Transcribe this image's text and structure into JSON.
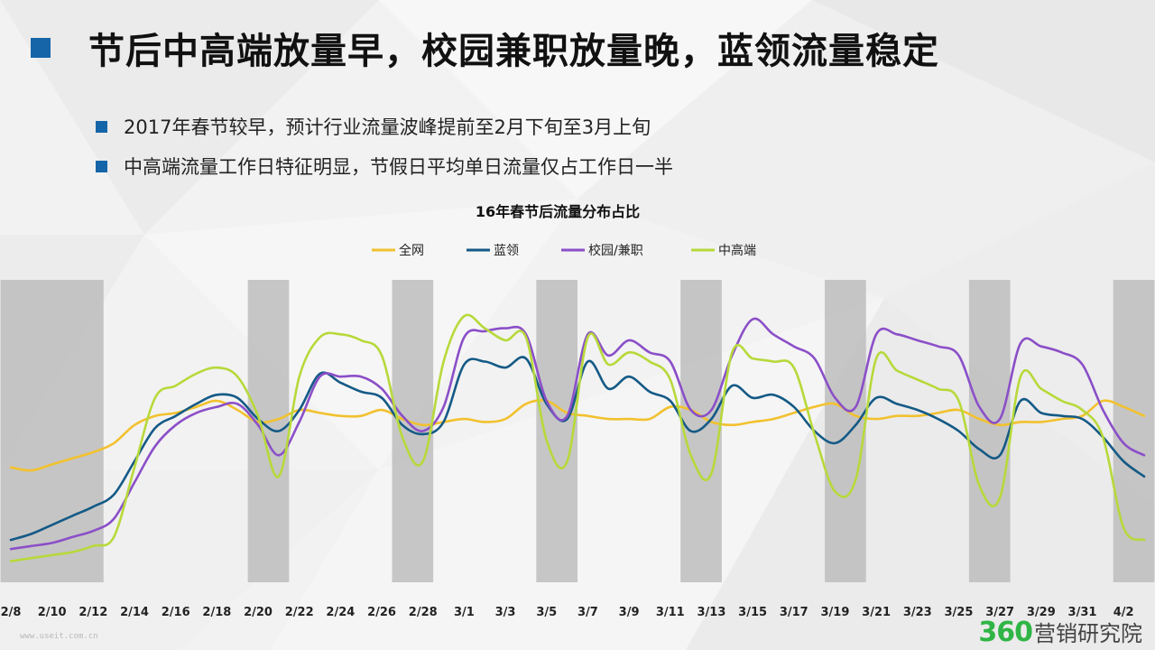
{
  "title": "节后中高端放量早，校园兼职放量晚，蓝领流量稳定",
  "bullets": [
    "2017年春节较早，预计行业流量波峰提前至2月下旬至3月上旬",
    "中高端流量工作日特征明显，节假日平均单日流量仅占工作日一半"
  ],
  "watermark": "www.useit.com.cn",
  "logo": {
    "number": "360",
    "text": "营销研究院"
  },
  "colors": {
    "accent": "#1565a8",
    "weekend_band": "#bdbdbd",
    "logo_green": "#2fb545"
  },
  "chart_data": {
    "type": "line",
    "title": "16年春节后流量分布占比",
    "legend_position": "top-center",
    "grid": false,
    "y_axis_visible": false,
    "ylim": [
      0,
      100
    ],
    "categories": [
      "2/8",
      "2/9",
      "2/10",
      "2/11",
      "2/12",
      "2/13",
      "2/14",
      "2/15",
      "2/16",
      "2/17",
      "2/18",
      "2/19",
      "2/20",
      "2/21",
      "2/22",
      "2/23",
      "2/24",
      "2/25",
      "2/26",
      "2/27",
      "2/28",
      "2/29",
      "3/1",
      "3/2",
      "3/3",
      "3/4",
      "3/5",
      "3/6",
      "3/7",
      "3/8",
      "3/9",
      "3/10",
      "3/11",
      "3/12",
      "3/13",
      "3/14",
      "3/15",
      "3/16",
      "3/17",
      "3/18",
      "3/19",
      "3/20",
      "3/21",
      "3/22",
      "3/23",
      "3/24",
      "3/25",
      "3/26",
      "3/27",
      "3/28",
      "3/29",
      "3/30",
      "3/31",
      "4/1",
      "4/2",
      "4/3"
    ],
    "x_tick_labels": [
      "2/8",
      "2/10",
      "2/12",
      "2/14",
      "2/16",
      "2/18",
      "2/20",
      "2/22",
      "2/24",
      "2/26",
      "2/28",
      "3/1",
      "3/3",
      "3/5",
      "3/7",
      "3/9",
      "3/11",
      "3/13",
      "3/15",
      "3/17",
      "3/19",
      "3/21",
      "3/23",
      "3/25",
      "3/27",
      "3/29",
      "3/31",
      "4/2"
    ],
    "weekend_bands": [
      [
        "2/8",
        "2/12"
      ],
      [
        "2/20",
        "2/21"
      ],
      [
        "2/27",
        "2/28"
      ],
      [
        "3/5",
        "3/6"
      ],
      [
        "3/12",
        "3/13"
      ],
      [
        "3/19",
        "3/20"
      ],
      [
        "3/26",
        "3/27"
      ],
      [
        "4/2",
        "4/3"
      ]
    ],
    "series": [
      {
        "name": "全网",
        "color": "#f2c12e",
        "values": [
          38,
          37,
          39,
          41,
          43,
          46,
          52,
          55,
          56,
          58,
          60,
          57,
          53,
          54,
          57,
          56,
          55,
          55,
          57,
          54,
          52,
          53,
          54,
          53,
          54,
          59,
          60,
          56,
          55,
          54,
          54,
          54,
          58,
          57,
          53,
          52,
          53,
          54,
          56,
          58,
          59,
          55,
          54,
          55,
          55,
          56,
          57,
          54,
          52,
          53,
          53,
          54,
          55,
          60,
          58,
          55
        ]
      },
      {
        "name": "蓝领",
        "color": "#145a86",
        "values": [
          14,
          16,
          19,
          22,
          25,
          29,
          40,
          51,
          55,
          59,
          62,
          61,
          54,
          50,
          57,
          69,
          66,
          63,
          61,
          52,
          49,
          53,
          72,
          73,
          71,
          74,
          59,
          54,
          73,
          64,
          68,
          63,
          60,
          50,
          54,
          65,
          61,
          62,
          58,
          50,
          46,
          52,
          61,
          59,
          57,
          54,
          50,
          44,
          42,
          60,
          56,
          55,
          54,
          48,
          40,
          35
        ]
      },
      {
        "name": "校园/兼职",
        "color": "#8b4fc8",
        "values": [
          11,
          12,
          13,
          15,
          17,
          21,
          33,
          45,
          52,
          56,
          58,
          59,
          52,
          42,
          53,
          68,
          68,
          68,
          64,
          55,
          50,
          58,
          81,
          83,
          84,
          82,
          60,
          55,
          82,
          75,
          80,
          76,
          73,
          57,
          57,
          75,
          87,
          82,
          78,
          74,
          61,
          58,
          82,
          82,
          80,
          78,
          75,
          58,
          54,
          79,
          78,
          76,
          72,
          57,
          46,
          42
        ]
      },
      {
        "name": "中高端",
        "color": "#b7d93a",
        "values": [
          7,
          8,
          9,
          10,
          12,
          15,
          38,
          61,
          65,
          69,
          71,
          68,
          55,
          35,
          68,
          81,
          82,
          80,
          75,
          48,
          40,
          73,
          88,
          84,
          80,
          81,
          47,
          40,
          81,
          72,
          76,
          73,
          67,
          42,
          36,
          76,
          74,
          73,
          71,
          49,
          30,
          34,
          74,
          70,
          67,
          64,
          60,
          32,
          28,
          68,
          64,
          60,
          57,
          48,
          18,
          14
        ]
      }
    ]
  }
}
